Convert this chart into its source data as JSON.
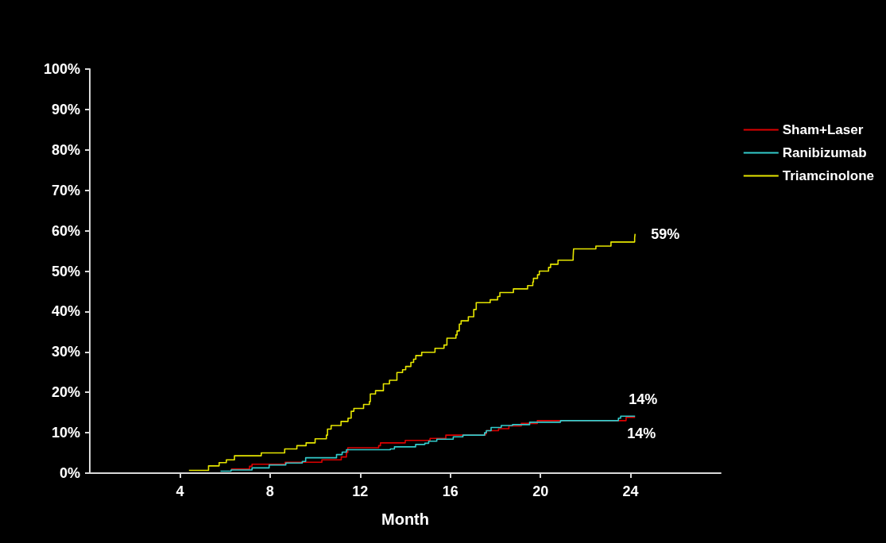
{
  "chart_data": {
    "type": "step",
    "xlabel": "Month",
    "xlim": [
      0,
      28
    ],
    "xticks": [
      4,
      8,
      12,
      16,
      20,
      24
    ],
    "ylim": [
      0,
      100
    ],
    "yticks": [
      {
        "value": 0,
        "label": "0%"
      },
      {
        "value": 10,
        "label": "10%"
      },
      {
        "value": 20,
        "label": "20%"
      },
      {
        "value": 30,
        "label": "30%"
      },
      {
        "value": 40,
        "label": "40%"
      },
      {
        "value": 50,
        "label": "50%"
      },
      {
        "value": 60,
        "label": "60%"
      },
      {
        "value": 70,
        "label": "70%"
      },
      {
        "value": 80,
        "label": "80%"
      },
      {
        "value": 90,
        "label": "90%"
      },
      {
        "value": 100,
        "label": "100%"
      }
    ],
    "grid": false,
    "legend": "top right",
    "marker": "none",
    "line_style": "solid",
    "series": [
      {
        "name": "Sham+Laser",
        "color": "#dd0000",
        "x": [
          6.27,
          7.09,
          7.2,
          8.67,
          10.3,
          11.16,
          11.39,
          11.45,
          12.82,
          12.9,
          14.0,
          15.1,
          15.8,
          17.55,
          17.6,
          18.14,
          18.6,
          19.15,
          19.86,
          23.8,
          24.2
        ],
        "values": [
          1.0,
          1.7,
          2.2,
          2.7,
          3.3,
          4.0,
          5.1,
          6.3,
          6.8,
          7.5,
          8.1,
          8.6,
          9.4,
          9.8,
          10.5,
          11.0,
          11.7,
          12.3,
          13.0,
          13.8,
          13.8
        ]
      },
      {
        "name": "Ranibizumab",
        "color": "#33cccc",
        "x": [
          5.8,
          6.27,
          7.2,
          7.96,
          8.7,
          9.43,
          9.58,
          10.95,
          11.2,
          11.39,
          13.34,
          13.52,
          14.46,
          14.87,
          15.04,
          15.4,
          16.13,
          16.56,
          17.52,
          17.6,
          17.81,
          18.26,
          18.76,
          19.52,
          20.89,
          23.46,
          23.56,
          24.2
        ],
        "values": [
          0.5,
          0.8,
          1.3,
          2.0,
          2.5,
          2.9,
          3.8,
          4.6,
          5.2,
          5.8,
          6.0,
          6.5,
          7.1,
          7.4,
          7.9,
          8.4,
          9.0,
          9.4,
          10.0,
          10.5,
          11.3,
          11.8,
          12.0,
          12.6,
          13.0,
          13.6,
          14.1,
          14.1
        ]
      },
      {
        "name": "Triamcinolone",
        "color": "#e6e600",
        "x": [
          4.4,
          5.27,
          5.74,
          6.06,
          6.42,
          7.61,
          8.65,
          9.19,
          9.6,
          10.0,
          10.5,
          10.55,
          10.71,
          11.15,
          11.46,
          11.6,
          11.72,
          12.15,
          12.41,
          12.45,
          12.68,
          13.03,
          13.3,
          13.63,
          13.88,
          14.02,
          14.25,
          14.37,
          14.47,
          14.73,
          15.32,
          15.72,
          15.85,
          16.25,
          16.3,
          16.4,
          16.48,
          16.8,
          17.04,
          17.15,
          17.77,
          18.1,
          18.2,
          18.8,
          19.43,
          19.66,
          19.69,
          19.87,
          19.95,
          20.36,
          20.45,
          20.78,
          21.45,
          21.47,
          22.46,
          23.13,
          24.18,
          24.2
        ],
        "values": [
          0.7,
          1.8,
          2.6,
          3.3,
          4.3,
          5.0,
          6.0,
          6.8,
          7.5,
          8.5,
          9.4,
          10.9,
          11.8,
          12.8,
          13.6,
          15.3,
          16.0,
          17.0,
          17.7,
          19.6,
          20.4,
          22.1,
          23.0,
          24.9,
          25.6,
          26.4,
          27.4,
          28.2,
          29.1,
          29.9,
          30.9,
          31.7,
          33.4,
          34.2,
          35.2,
          36.9,
          37.7,
          38.7,
          40.5,
          42.2,
          42.9,
          43.7,
          44.7,
          45.6,
          46.4,
          47.3,
          48.2,
          49.1,
          50.0,
          50.9,
          51.7,
          52.7,
          53.4,
          55.5,
          56.2,
          57.2,
          58.2,
          59.2
        ]
      }
    ],
    "annotations": [
      "59%",
      "14%",
      "14%"
    ]
  }
}
